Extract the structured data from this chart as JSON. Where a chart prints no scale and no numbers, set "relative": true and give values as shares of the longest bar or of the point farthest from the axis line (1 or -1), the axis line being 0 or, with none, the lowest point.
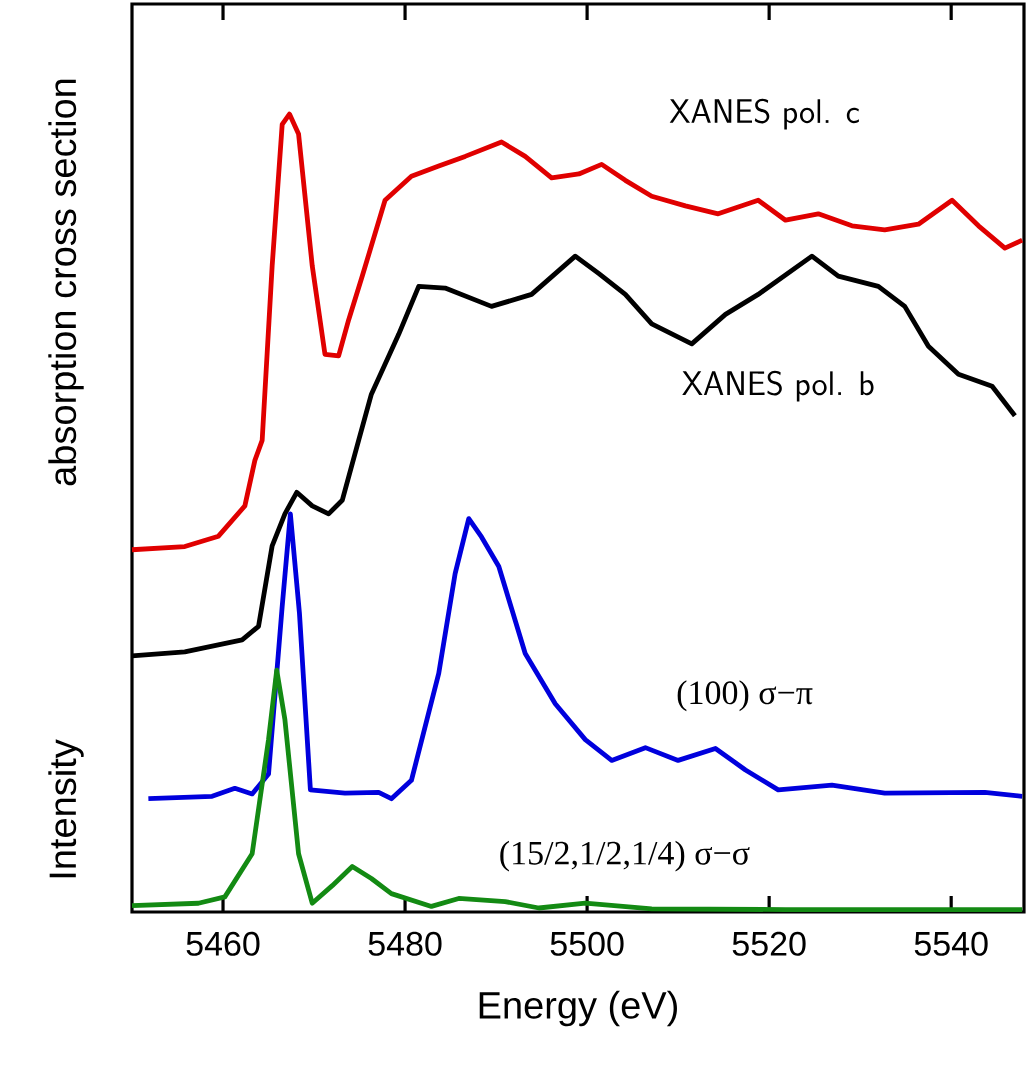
{
  "chart_data": {
    "type": "line",
    "relative": true,
    "xlabel": "Energy (eV)",
    "ylabel": "absorption cross section",
    "annotations": [
      "Intensity"
    ],
    "xlim": [
      5450,
      5548
    ],
    "xticks": [
      5460,
      5480,
      5500,
      5520,
      5540
    ],
    "series": [
      {
        "name": "XANES pol. c",
        "color": "#e00000",
        "x": [
          5450,
          5455.8,
          5459.5,
          5462.4,
          5463.5,
          5464.3,
          5465.4,
          5466.5,
          5467.3,
          5468.3,
          5469.8,
          5471.2,
          5472.7,
          5473.8,
          5475.3,
          5477.8,
          5480.7,
          5483.7,
          5486.6,
          5490.6,
          5493.2,
          5496.1,
          5499.1,
          5501.6,
          5504.2,
          5507.1,
          5510.8,
          5514.4,
          5518.8,
          5521.8,
          5525.4,
          5529.1,
          5532.7,
          5536.4,
          5540.1,
          5543.0,
          5545.9,
          5547.8
        ],
        "values": [
          0.454,
          0.458,
          0.471,
          0.509,
          0.566,
          0.591,
          0.81,
          0.987,
          1.0,
          0.975,
          0.81,
          0.699,
          0.697,
          0.742,
          0.797,
          0.892,
          0.922,
          0.935,
          0.947,
          0.965,
          0.947,
          0.92,
          0.925,
          0.937,
          0.917,
          0.897,
          0.885,
          0.875,
          0.892,
          0.867,
          0.875,
          0.86,
          0.855,
          0.862,
          0.892,
          0.86,
          0.832,
          0.842
        ]
      },
      {
        "name": "XANES pol. b",
        "color": "#000000",
        "x": [
          5450,
          5455.8,
          5462.1,
          5463.9,
          5465.4,
          5466.8,
          5468.1,
          5469.8,
          5471.6,
          5473.1,
          5474.9,
          5476.3,
          5479.3,
          5481.5,
          5484.4,
          5489.5,
          5493.9,
          5498.7,
          5501.3,
          5504.2,
          5507.1,
          5511.5,
          5515.2,
          5518.8,
          5524.7,
          5527.6,
          5532.0,
          5534.9,
          5537.5,
          5540.8,
          5544.5,
          5547.0
        ],
        "values": [
          0.321,
          0.326,
          0.341,
          0.358,
          0.459,
          0.499,
          0.526,
          0.509,
          0.499,
          0.516,
          0.591,
          0.649,
          0.724,
          0.784,
          0.782,
          0.759,
          0.774,
          0.822,
          0.8,
          0.774,
          0.737,
          0.712,
          0.749,
          0.774,
          0.822,
          0.797,
          0.784,
          0.759,
          0.709,
          0.674,
          0.659,
          0.622
        ]
      },
      {
        "name": "(100) σ−π",
        "color": "#0000dd",
        "x": [
          5451.8,
          5458.8,
          5461.3,
          5463.2,
          5465.0,
          5466.5,
          5467.4,
          5468.4,
          5469.6,
          5473.4,
          5477.1,
          5478.5,
          5480.7,
          5483.7,
          5485.5,
          5487.0,
          5488.4,
          5490.3,
          5493.2,
          5496.5,
          5499.8,
          5502.7,
          5506.4,
          5510.0,
          5514.1,
          5517.4,
          5521.0,
          5526.9,
          5532.7,
          5543.7,
          5547.8
        ],
        "values": [
          0.142,
          0.145,
          0.155,
          0.148,
          0.173,
          0.383,
          0.499,
          0.374,
          0.153,
          0.149,
          0.15,
          0.142,
          0.165,
          0.299,
          0.424,
          0.493,
          0.47,
          0.433,
          0.324,
          0.261,
          0.216,
          0.19,
          0.206,
          0.19,
          0.205,
          0.178,
          0.153,
          0.159,
          0.149,
          0.15,
          0.145
        ]
      },
      {
        "name": "(15/2,1/2,1/4) σ−σ",
        "color": "#138a13",
        "x": [
          5450,
          5457.3,
          5460.2,
          5463.2,
          5465.0,
          5465.9,
          5466.8,
          5468.3,
          5469.8,
          5472.0,
          5474.2,
          5476.3,
          5478.5,
          5482.9,
          5485.9,
          5491.0,
          5494.7,
          5499.8,
          5507.1,
          5521.8,
          5547.8
        ],
        "values": [
          0.008,
          0.011,
          0.019,
          0.073,
          0.216,
          0.303,
          0.241,
          0.073,
          0.011,
          0.033,
          0.057,
          0.042,
          0.023,
          0.007,
          0.017,
          0.013,
          0.005,
          0.011,
          0.004,
          0.003,
          0.003
        ]
      }
    ]
  }
}
